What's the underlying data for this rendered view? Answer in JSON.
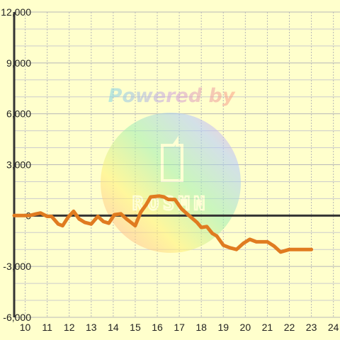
{
  "chart_data": {
    "type": "line",
    "title": "",
    "xlabel": "",
    "ylabel": "",
    "xlim": [
      9.5,
      24.3
    ],
    "ylim": [
      -6000,
      12000
    ],
    "xticks": [
      10,
      11,
      12,
      13,
      14,
      15,
      16,
      17,
      18,
      19,
      20,
      21,
      22,
      23,
      24
    ],
    "xtick_labels": [
      "10",
      "11",
      "12",
      "13",
      "14",
      "15",
      "16",
      "17",
      "18",
      "19",
      "20",
      "21",
      "22",
      "23",
      "24"
    ],
    "yticks": [
      -6000,
      -3000,
      0,
      3000,
      6000,
      9000,
      12000
    ],
    "ytick_labels": [
      "-6,000",
      "-3,000",
      "0",
      "3,000",
      "6,000",
      "9,000",
      "12,000"
    ],
    "grid": true,
    "legend": "none",
    "colors": {
      "background": "#ffffcc",
      "grid_major": "#b8b8b8",
      "grid_minor": "#cccccc",
      "axis": "#333333",
      "line": "#e07b20"
    },
    "series": [
      {
        "x": [
          9.5,
          10.0,
          10.2,
          10.5,
          10.7,
          11.0,
          11.2,
          11.5,
          11.7,
          11.95,
          12.2,
          12.45,
          12.7,
          13.0,
          13.3,
          13.55,
          13.8,
          14.05,
          14.35,
          14.6,
          14.75,
          15.0,
          15.25,
          15.5,
          15.7,
          16.1,
          16.3,
          16.5,
          16.8,
          17.1,
          17.4,
          17.8,
          18.0,
          18.25,
          18.5,
          18.7,
          19.0,
          19.3,
          19.6,
          19.9,
          20.2,
          20.5,
          20.8,
          21.0,
          21.3,
          21.6,
          22.0,
          22.4,
          22.8,
          23.0
        ],
        "y": [
          0,
          0,
          0,
          100,
          150,
          -50,
          -50,
          -500,
          -600,
          -100,
          250,
          -200,
          -400,
          -500,
          -50,
          -350,
          -450,
          50,
          100,
          -200,
          -350,
          -600,
          200,
          650,
          1100,
          1150,
          1100,
          950,
          950,
          400,
          50,
          -400,
          -700,
          -650,
          -1050,
          -1200,
          -1750,
          -1900,
          -2000,
          -1650,
          -1400,
          -1550,
          -1550,
          -1550,
          -1800,
          -2150,
          -2000,
          -2000,
          -2000,
          -2000
        ]
      }
    ]
  },
  "watermark": {
    "powered_text": "Powered by",
    "brand_text": "ROSMN"
  }
}
